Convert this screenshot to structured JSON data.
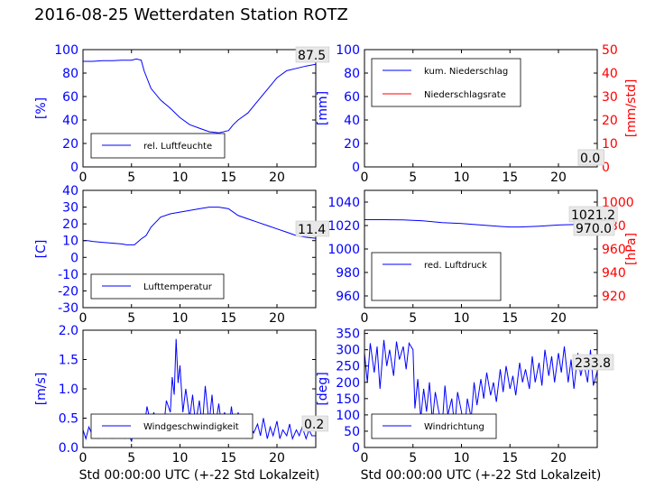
{
  "page": {
    "title": "2016-08-25 Wetterdaten Station ROTZ"
  },
  "colors": {
    "primary": "#0000ff",
    "secondary": "#ff0000"
  },
  "chart_data": [
    {
      "id": "humidity",
      "type": "line",
      "xlabel": "",
      "ylabel": "[%]",
      "xlim": [
        0,
        24
      ],
      "ylim": [
        0,
        100
      ],
      "xticks": [
        0,
        5,
        10,
        15,
        20
      ],
      "yticks": [
        0,
        20,
        40,
        60,
        80,
        100
      ],
      "legend": "lower-left",
      "last_value_label": "87.5",
      "series": [
        {
          "name": "rel. Luftfeuchte",
          "axis": "left",
          "color": "#0000ff",
          "x": [
            0,
            1,
            2,
            3,
            4,
            5,
            5.5,
            6,
            6.3,
            7,
            8,
            9,
            10,
            11,
            12,
            13,
            14,
            15,
            15.5,
            16,
            17,
            18,
            19,
            20,
            21,
            22,
            23,
            24
          ],
          "y": [
            90,
            90,
            90.5,
            90.5,
            91,
            91,
            92,
            91,
            82,
            67,
            57,
            50,
            42,
            36,
            33,
            30,
            29,
            31,
            36,
            40,
            46,
            56,
            66,
            76,
            82,
            84,
            86,
            87.5
          ]
        }
      ]
    },
    {
      "id": "precip",
      "type": "line",
      "xlabel": "",
      "ylabel": "[mm]",
      "ylabel_right": "[mm/std]",
      "xlim": [
        0,
        24
      ],
      "ylim": [
        0,
        100
      ],
      "ylim_right": [
        0,
        50
      ],
      "xticks": [
        0,
        5,
        10,
        15,
        20
      ],
      "yticks": [
        0,
        20,
        40,
        60,
        80,
        100
      ],
      "yticks_right": [
        0,
        10,
        20,
        30,
        40,
        50
      ],
      "legend": "top-left",
      "last_value_label": "0.0",
      "last_value_label_2": "0.0",
      "series": [
        {
          "name": "kum. Niederschlag",
          "axis": "left",
          "color": "#0000ff",
          "x": [
            0,
            24
          ],
          "y": [
            0,
            0
          ]
        },
        {
          "name": "Niederschlagsrate",
          "axis": "right",
          "color": "#ff0000",
          "x": [
            0,
            24
          ],
          "y": [
            0,
            0
          ]
        }
      ]
    },
    {
      "id": "temperature",
      "type": "line",
      "xlabel": "",
      "ylabel": "[C]",
      "xlim": [
        0,
        24
      ],
      "ylim": [
        -30,
        40
      ],
      "xticks": [
        0,
        5,
        10,
        15,
        20
      ],
      "yticks": [
        -30,
        -20,
        -10,
        0,
        10,
        20,
        30,
        40
      ],
      "legend": "lower-left",
      "last_value_label": "11.4",
      "series": [
        {
          "name": "Lufttemperatur",
          "axis": "left",
          "color": "#0000ff",
          "x": [
            0,
            0.5,
            1,
            2,
            3,
            4,
            4.5,
            5,
            5.3,
            6,
            6.5,
            7,
            8,
            9,
            10,
            11,
            12,
            13,
            14,
            15,
            16,
            17,
            18,
            19,
            20,
            21,
            22,
            23,
            24
          ],
          "y": [
            10,
            10,
            9.5,
            9,
            8.5,
            8,
            7.5,
            7.5,
            7.5,
            11,
            13,
            18,
            24,
            26,
            27,
            28,
            29,
            30,
            30,
            29,
            25,
            23,
            21,
            19,
            17,
            15,
            13,
            12,
            11.4
          ]
        }
      ]
    },
    {
      "id": "pressure",
      "type": "line",
      "xlabel": "",
      "ylabel": "",
      "ylabel_right": "[hPa]",
      "xlim": [
        0,
        24
      ],
      "ylim": [
        950,
        1050
      ],
      "ylim_right": [
        910,
        1010
      ],
      "xticks": [
        0,
        5,
        10,
        15,
        20
      ],
      "yticks": [
        960,
        980,
        1000,
        1020,
        1040
      ],
      "yticks_right": [
        920,
        940,
        960,
        980,
        1000
      ],
      "legend": "lower-left",
      "last_value_label": "1021.2",
      "last_value_label_2": "970.0",
      "series": [
        {
          "name": "red. Luftdruck",
          "axis": "left",
          "color": "#0000ff",
          "x": [
            0,
            2,
            4,
            5,
            6,
            8,
            10,
            12,
            14,
            15,
            16,
            18,
            20,
            22,
            24
          ],
          "y": [
            1025,
            1025,
            1024.8,
            1024.5,
            1024,
            1022.5,
            1021.8,
            1020.5,
            1019.2,
            1018.8,
            1018.8,
            1019.5,
            1020.5,
            1021,
            1021.2
          ]
        }
      ]
    },
    {
      "id": "wind-speed",
      "type": "line",
      "xlabel": "Std 00:00:00 UTC (+-22 Std Lokalzeit)",
      "ylabel": "[m/s]",
      "xlim": [
        0,
        24
      ],
      "ylim": [
        0,
        2.0
      ],
      "xticks": [
        0,
        5,
        10,
        15,
        20
      ],
      "yticks": [
        0.0,
        0.5,
        1.0,
        1.5,
        2.0
      ],
      "legend": "lower-left",
      "last_value_label": "0.2",
      "series": [
        {
          "name": "Windgeschwindigkeit",
          "axis": "left",
          "color": "#0000ff",
          "x": [
            0,
            0.3,
            0.6,
            1,
            1.3,
            1.6,
            2,
            2.3,
            2.6,
            3,
            3.3,
            3.6,
            4,
            4.3,
            4.6,
            5,
            5.3,
            5.6,
            6,
            6.3,
            6.6,
            7,
            7.3,
            7.6,
            8,
            8.3,
            8.6,
            9,
            9.2,
            9.4,
            9.6,
            9.8,
            10,
            10.3,
            10.6,
            11,
            11.3,
            11.6,
            12,
            12.3,
            12.6,
            13,
            13.3,
            13.6,
            14,
            14.3,
            14.6,
            15,
            15.3,
            15.6,
            16,
            16.3,
            16.6,
            17,
            17.3,
            17.6,
            18,
            18.3,
            18.6,
            19,
            19.3,
            19.6,
            20,
            20.3,
            20.6,
            21,
            21.3,
            21.6,
            22,
            22.3,
            22.6,
            23,
            23.3,
            23.6,
            24
          ],
          "y": [
            0.3,
            0.15,
            0.35,
            0.2,
            0.4,
            0.15,
            0.5,
            0.25,
            0.45,
            0.15,
            0.35,
            0.2,
            0.5,
            0.15,
            0.3,
            0.1,
            0.4,
            0.2,
            0.55,
            0.3,
            0.7,
            0.4,
            0.6,
            0.35,
            0.5,
            0.3,
            0.8,
            0.6,
            1.2,
            0.9,
            1.85,
            1.1,
            1.4,
            0.6,
            1.0,
            0.5,
            0.9,
            0.4,
            0.8,
            0.35,
            1.05,
            0.4,
            0.9,
            0.3,
            0.75,
            0.35,
            0.6,
            0.25,
            0.7,
            0.3,
            0.6,
            0.2,
            0.45,
            0.15,
            0.35,
            0.25,
            0.4,
            0.2,
            0.5,
            0.15,
            0.35,
            0.2,
            0.45,
            0.15,
            0.3,
            0.2,
            0.4,
            0.15,
            0.3,
            0.2,
            0.35,
            0.15,
            0.3,
            0.2,
            0.2
          ]
        }
      ]
    },
    {
      "id": "wind-direction",
      "type": "line",
      "xlabel": "Std 00:00:00 UTC (+-22 Std Lokalzeit)",
      "ylabel": "[deg]",
      "xlim": [
        0,
        24
      ],
      "ylim": [
        0,
        360
      ],
      "xticks": [
        0,
        5,
        10,
        15,
        20
      ],
      "yticks": [
        0,
        50,
        100,
        150,
        200,
        250,
        300,
        350
      ],
      "legend": "lower-left",
      "last_value_label": "233.8",
      "series": [
        {
          "name": "Windrichtung",
          "axis": "left",
          "color": "#0000ff",
          "x": [
            0,
            0.3,
            0.6,
            1,
            1.3,
            1.6,
            2,
            2.3,
            2.6,
            3,
            3.3,
            3.6,
            4,
            4.3,
            4.6,
            5,
            5.2,
            5.5,
            5.8,
            6.1,
            6.4,
            6.7,
            7,
            7.3,
            7.6,
            8,
            8.3,
            8.6,
            9,
            9.3,
            9.6,
            10,
            10.3,
            10.6,
            11,
            11.3,
            11.6,
            12,
            12.3,
            12.6,
            13,
            13.3,
            13.6,
            14,
            14.3,
            14.6,
            15,
            15.3,
            15.6,
            16,
            16.3,
            16.6,
            17,
            17.3,
            17.6,
            18,
            18.3,
            18.6,
            19,
            19.3,
            19.6,
            20,
            20.3,
            20.6,
            21,
            21.3,
            21.6,
            22,
            22.3,
            22.6,
            23,
            23.3,
            23.6,
            24
          ],
          "y": [
            290,
            200,
            320,
            230,
            310,
            180,
            330,
            250,
            300,
            220,
            325,
            270,
            310,
            240,
            320,
            300,
            120,
            210,
            90,
            180,
            110,
            200,
            80,
            170,
            120,
            60,
            190,
            100,
            150,
            60,
            170,
            110,
            40,
            150,
            90,
            200,
            130,
            210,
            150,
            230,
            160,
            200,
            140,
            240,
            170,
            250,
            180,
            220,
            160,
            260,
            200,
            240,
            180,
            280,
            200,
            260,
            190,
            300,
            220,
            280,
            200,
            290,
            230,
            310,
            200,
            270,
            180,
            290,
            220,
            260,
            200,
            300,
            190,
            233.8
          ]
        }
      ]
    }
  ]
}
